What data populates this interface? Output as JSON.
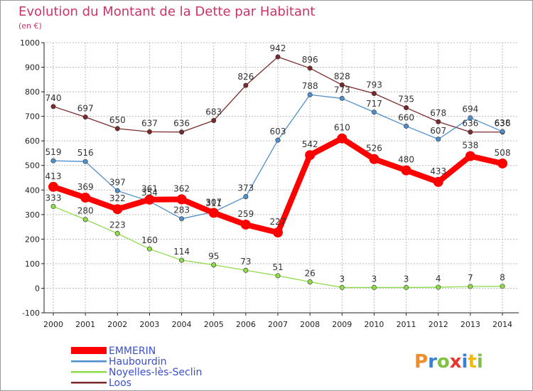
{
  "chart_data": {
    "type": "line",
    "title": "Evolution du Montant de la Dette par Habitant",
    "subtitle": "(en €)",
    "x": [
      "2000",
      "2001",
      "2002",
      "2003",
      "2004",
      "2005",
      "2006",
      "2007",
      "2008",
      "2009",
      "2010",
      "2011",
      "2012",
      "2013",
      "2014"
    ],
    "ylim": [
      -100,
      1000
    ],
    "yticks": [
      "-100",
      "0",
      "100",
      "200",
      "300",
      "400",
      "500",
      "600",
      "700",
      "800",
      "900",
      "1000"
    ],
    "grid": true,
    "legend_position": "bottom-left",
    "series": [
      {
        "name": "EMMERIN",
        "color": "#ff0000",
        "values": [
          413,
          369,
          322,
          361,
          362,
          307,
          259,
          227,
          542,
          610,
          526,
          480,
          433,
          538,
          508
        ]
      },
      {
        "name": "Haubourdin",
        "color": "#4f8fcc",
        "values": [
          519,
          516,
          397,
          354,
          283,
          311,
          373,
          603,
          788,
          773,
          717,
          660,
          607,
          694,
          638
        ]
      },
      {
        "name": "Noyelles-lès-Seclin",
        "color": "#8edc4a",
        "values": [
          333,
          280,
          223,
          160,
          114,
          95,
          73,
          51,
          26,
          3,
          3,
          3,
          4,
          7,
          8
        ]
      },
      {
        "name": "Loos",
        "color": "#7a2a2a",
        "values": [
          740,
          697,
          650,
          637,
          636,
          683,
          826,
          942,
          896,
          828,
          793,
          735,
          678,
          636,
          636
        ]
      }
    ],
    "colors": {
      "title": "#cc3366",
      "axis": "#222222",
      "grid": "#bbbbbb",
      "frame": "#999999"
    }
  },
  "logo": {
    "text": "Proxiti"
  }
}
